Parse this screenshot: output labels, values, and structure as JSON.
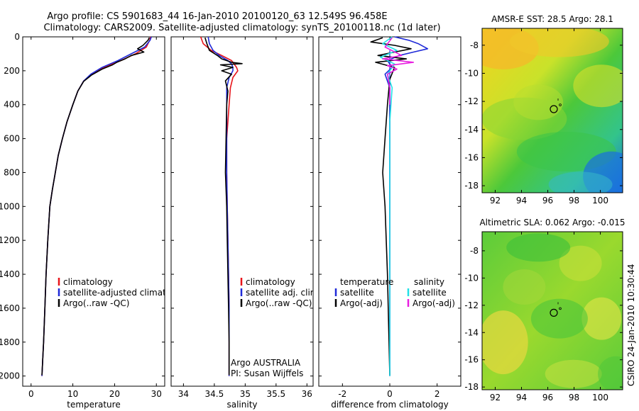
{
  "title": {
    "line1": "Argo profile: CS 5901683_44 16-Jan-2010 20100120_63 12.549S 96.458E",
    "line2": "Climatology: CARS2009. Satellite-adjusted climatology: synTS_20100118.nc (1d later)"
  },
  "side_label": "CSIRO 24-Jan-2010 10:30:44",
  "colors": {
    "climatology": "#e8141a",
    "satellite": "#1f2ad8",
    "argo": "#000000",
    "satellite_salinity": "#22e0e6",
    "argo_salinity": "#e81ee0"
  },
  "chart_data": [
    {
      "id": "temperature",
      "type": "line",
      "xlabel": "temperature",
      "ylabel": "",
      "xlim": [
        -2,
        32
      ],
      "ylim": [
        2060,
        0
      ],
      "xticks": [
        0,
        10,
        20,
        30
      ],
      "yticks": [
        0,
        200,
        400,
        600,
        800,
        1000,
        1200,
        1400,
        1600,
        1800,
        2000
      ],
      "legend": {
        "position": "lower-right",
        "entries": [
          "climatology",
          "satellite-adjusted climatology",
          "Argo(..raw -QC)"
        ]
      },
      "series": [
        {
          "name": "climatology",
          "color": "#e8141a",
          "x": [
            28.6,
            28.4,
            27.6,
            25.0,
            21.5,
            17.5,
            14.5,
            12.6,
            11.2,
            10.0,
            8.6,
            7.5,
            6.5,
            5.8,
            5.1,
            4.5,
            4.0,
            3.6,
            3.3,
            3.0,
            2.8,
            2.6
          ],
          "y": [
            0,
            20,
            60,
            100,
            140,
            180,
            220,
            260,
            320,
            400,
            500,
            600,
            700,
            800,
            900,
            1000,
            1200,
            1400,
            1600,
            1800,
            1900,
            2000
          ]
        },
        {
          "name": "satellite-adjusted climatology",
          "color": "#1f2ad8",
          "x": [
            28.8,
            28.5,
            27.2,
            24.0,
            20.8,
            17.0,
            14.3,
            12.6,
            11.2,
            10.0,
            8.6,
            7.5,
            6.5,
            5.8,
            5.1,
            4.5,
            4.0,
            3.6,
            3.3,
            3.0,
            2.8,
            2.6
          ],
          "y": [
            0,
            20,
            60,
            100,
            140,
            180,
            220,
            260,
            320,
            400,
            500,
            600,
            700,
            800,
            900,
            1000,
            1200,
            1400,
            1600,
            1800,
            1900,
            2000
          ]
        },
        {
          "name": "Argo(..raw -QC)",
          "color": "#000000",
          "x": [
            28.3,
            28.0,
            26.8,
            25.5,
            27.0,
            24.0,
            22.5,
            20.5,
            19.5,
            17.0,
            14.5,
            12.6,
            11.2,
            10.0,
            8.6,
            7.5,
            6.5,
            5.8,
            5.1,
            4.5,
            4.0,
            3.6,
            3.3,
            3.0,
            2.8,
            2.6
          ],
          "y": [
            5,
            20,
            50,
            70,
            90,
            110,
            130,
            150,
            165,
            190,
            225,
            262,
            320,
            400,
            500,
            600,
            700,
            800,
            900,
            1000,
            1200,
            1400,
            1600,
            1800,
            1900,
            1995
          ]
        }
      ]
    },
    {
      "id": "salinity",
      "type": "line",
      "xlabel": "salinity",
      "ylabel": "",
      "xlim": [
        33.8,
        36.1
      ],
      "ylim": [
        2060,
        0
      ],
      "xticks": [
        34,
        34.5,
        35,
        35.5,
        36
      ],
      "yticks": [
        0,
        200,
        400,
        600,
        800,
        1000,
        1200,
        1400,
        1600,
        1800,
        2000
      ],
      "legend": {
        "position": "lower-right",
        "entries": [
          "climatology",
          "satellite adj. clim.",
          "Argo(..raw -QC)"
        ]
      },
      "annotations": [
        "Argo AUSTRALIA",
        "PI: Susan Wijffels"
      ],
      "series": [
        {
          "name": "climatology",
          "color": "#e8141a",
          "x": [
            34.28,
            34.32,
            34.45,
            34.62,
            34.78,
            34.82,
            34.86,
            34.88,
            34.8,
            34.76,
            34.74,
            34.72,
            34.7,
            34.7,
            34.71,
            34.72,
            34.73,
            34.74,
            34.74,
            34.74
          ],
          "y": [
            0,
            40,
            80,
            110,
            140,
            160,
            180,
            200,
            240,
            300,
            400,
            500,
            600,
            800,
            1000,
            1200,
            1400,
            1600,
            1800,
            2000
          ]
        },
        {
          "name": "satellite adj. clim.",
          "color": "#1f2ad8",
          "x": [
            34.4,
            34.42,
            34.48,
            34.58,
            34.72,
            34.78,
            34.8,
            34.8,
            34.74,
            34.7,
            34.7,
            34.7,
            34.7,
            34.7,
            34.71,
            34.72,
            34.73,
            34.74,
            34.74,
            34.74
          ],
          "y": [
            0,
            40,
            80,
            110,
            140,
            160,
            180,
            200,
            240,
            300,
            400,
            500,
            600,
            800,
            1000,
            1200,
            1400,
            1600,
            1800,
            2000
          ]
        },
        {
          "name": "Argo(..raw -QC)",
          "color": "#000000",
          "x": [
            34.35,
            34.38,
            34.42,
            34.55,
            34.62,
            34.78,
            34.95,
            34.6,
            34.8,
            34.62,
            34.78,
            34.68,
            34.72,
            34.7,
            34.69,
            34.68,
            34.7,
            34.71,
            34.72,
            34.73,
            34.74,
            34.74
          ],
          "y": [
            5,
            40,
            80,
            110,
            130,
            150,
            158,
            165,
            180,
            200,
            220,
            260,
            320,
            400,
            600,
            800,
            1000,
            1200,
            1400,
            1600,
            1800,
            1995
          ]
        }
      ]
    },
    {
      "id": "difference",
      "type": "line",
      "xlabel": "difference from climatology",
      "ylabel": "",
      "xlim": [
        -3,
        3
      ],
      "ylim": [
        2060,
        0
      ],
      "xticks": [
        -2,
        0,
        2
      ],
      "yticks": [
        0,
        200,
        400,
        600,
        800,
        1000,
        1200,
        1400,
        1600,
        1800,
        2000
      ],
      "legend": {
        "position": "lower-center",
        "columns": [
          "temperature",
          "salinity"
        ],
        "entries": [
          "satellite",
          "Argo(-adj)",
          "satellite",
          "Argo(-adj)"
        ]
      },
      "series": [
        {
          "name": "temperature satellite",
          "color": "#1f2ad8",
          "x": [
            0.2,
            0.8,
            1.2,
            1.6,
            1.0,
            0.4,
            -0.1,
            0.1,
            -0.2,
            0.0,
            0.0,
            0.0,
            0.0
          ],
          "y": [
            0,
            20,
            40,
            70,
            90,
            110,
            140,
            180,
            220,
            300,
            400,
            600,
            2000
          ]
        },
        {
          "name": "temperature Argo(-adj)",
          "color": "#000000",
          "x": [
            -0.3,
            -0.8,
            0.2,
            0.9,
            0.2,
            -0.5,
            0.7,
            -0.6,
            0.2,
            0.0,
            -0.1,
            -0.2,
            -0.3,
            -0.2,
            -0.1,
            0.0
          ],
          "y": [
            5,
            30,
            50,
            70,
            90,
            110,
            130,
            150,
            180,
            250,
            400,
            600,
            800,
            1000,
            1400,
            1995
          ]
        },
        {
          "name": "salinity satellite",
          "color": "#22e0e6",
          "x": [
            0.1,
            -0.3,
            0.3,
            -0.4,
            0.2,
            -0.1,
            0.1,
            0.0,
            0.0
          ],
          "y": [
            0,
            40,
            80,
            120,
            160,
            220,
            300,
            500,
            2000
          ]
        },
        {
          "name": "salinity Argo(-adj)",
          "color": "#e81ee0",
          "x": [
            0.1,
            -0.2,
            0.5,
            -0.3,
            1.0,
            -0.1,
            0.3,
            -0.1,
            0.0,
            0.0
          ],
          "y": [
            5,
            60,
            110,
            130,
            150,
            170,
            190,
            220,
            300,
            400
          ]
        }
      ]
    },
    {
      "id": "sst_map",
      "type": "heatmap",
      "title": "AMSR-E SST: 28.5 Argo: 28.1",
      "xlim": [
        91,
        101.7
      ],
      "ylim": [
        -18.5,
        -6.8
      ],
      "xticks": [
        92,
        94,
        96,
        98,
        100
      ],
      "yticks": [
        -8,
        -10,
        -12,
        -14,
        -16,
        -18
      ],
      "marker": {
        "lon": 96.458,
        "lat": -12.549
      }
    },
    {
      "id": "sla_map",
      "type": "heatmap",
      "title": "Altimetric SLA: 0.062 Argo: -0.015",
      "xlim": [
        91,
        101.7
      ],
      "ylim": [
        -18.2,
        -6.6
      ],
      "xticks": [
        92,
        94,
        96,
        98,
        100
      ],
      "yticks": [
        -8,
        -10,
        -12,
        -14,
        -16,
        -18
      ],
      "marker": {
        "lon": 96.458,
        "lat": -12.549
      }
    }
  ]
}
